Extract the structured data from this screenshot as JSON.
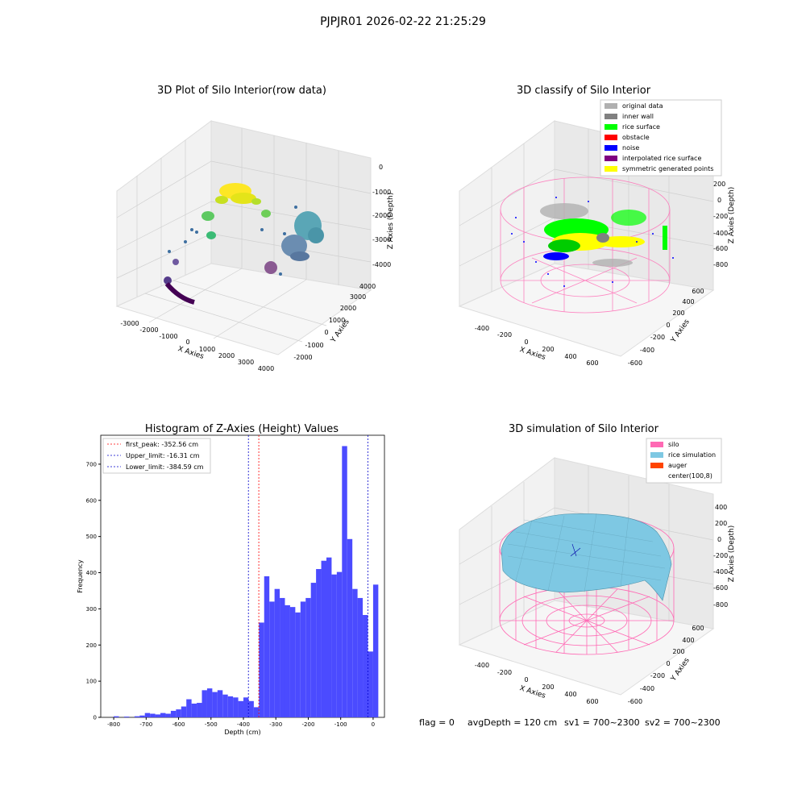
{
  "suptitle": "PJPJR01 2026-02-22 21:25:29",
  "status_line": {
    "flag": "flag = 0",
    "avg_depth": "avgDepth = 120 cm",
    "sv1": "sv1 = 700~2300",
    "sv2": "sv2 = 700~2300"
  },
  "colors": {
    "hist_bar": "#4b4bff",
    "first_peak": "#ff0000",
    "limit_line": "#0000cc",
    "silo": "#ff69b4",
    "rice_simulation": "#7ec8e3",
    "auger": "#ff4500",
    "rice_surface": "#00ff00",
    "noise": "#0000ff",
    "original_data": "#b0b0b0",
    "inner_wall": "#808080",
    "obstacle": "#ff0000",
    "interpolated_rice_surface": "#800080",
    "symmetric_generated_points": "#ffff00"
  },
  "chart_data": [
    {
      "type": "scatter",
      "projection": "3d",
      "title": "3D Plot of Silo Interior(row data)",
      "xlabel": "X Axies",
      "ylabel": "Y Axies",
      "zlabel": "Z Axies (Depth)",
      "x_ticks": [
        "-3000",
        "-2000",
        "-1000",
        "0",
        "1000",
        "2000",
        "3000",
        "4000"
      ],
      "y_ticks": [
        "-2000",
        "-1000",
        "0",
        "1000",
        "2000",
        "3000",
        "4000"
      ],
      "z_ticks": [
        "0",
        "-1000",
        "-2000",
        "-3000",
        "-4000"
      ],
      "colormap": "viridis",
      "grid": true
    },
    {
      "type": "scatter",
      "projection": "3d",
      "title": "3D classify of Silo Interior",
      "xlabel": "X Axies",
      "ylabel": "Y Axies",
      "zlabel": "Z Axies (Depth)",
      "x_ticks": [
        "-400",
        "-200",
        "0",
        "200",
        "400",
        "600"
      ],
      "y_ticks": [
        "-600",
        "-400",
        "-200",
        "0",
        "200",
        "400",
        "600"
      ],
      "z_ticks": [
        "200",
        "0",
        "-200",
        "-400",
        "-600",
        "-800"
      ],
      "legend": {
        "placement": "top-right",
        "entries": [
          {
            "label": "original data",
            "color": "#b0b0b0"
          },
          {
            "label": "inner wall",
            "color": "#808080"
          },
          {
            "label": "rice surface",
            "color": "#00ff00"
          },
          {
            "label": "obstacle",
            "color": "#ff0000"
          },
          {
            "label": "noise",
            "color": "#0000ff"
          },
          {
            "label": "interpolated rice surface",
            "color": "#800080"
          },
          {
            "label": "symmetric generated points",
            "color": "#ffff00"
          }
        ]
      },
      "grid": true
    },
    {
      "type": "bar",
      "title": "Histogram of Z-Axies (Height) Values",
      "xlabel": "Depth (cm)",
      "ylabel": "Frequency",
      "xlim": [
        -840,
        35
      ],
      "ylim": [
        0,
        780
      ],
      "x_ticks": [
        -800,
        -700,
        -600,
        -500,
        -400,
        -300,
        -200,
        -100,
        0
      ],
      "y_ticks": [
        0,
        100,
        200,
        300,
        400,
        500,
        600,
        700
      ],
      "bin_width": 16,
      "bin_start": -800,
      "values": [
        3,
        0,
        2,
        0,
        3,
        5,
        12,
        10,
        8,
        12,
        10,
        18,
        22,
        30,
        50,
        38,
        40,
        75,
        80,
        70,
        75,
        63,
        58,
        55,
        45,
        55,
        45,
        28,
        262,
        390,
        320,
        355,
        330,
        310,
        305,
        290,
        320,
        330,
        372,
        410,
        433,
        442,
        395,
        402,
        750,
        493,
        355,
        330,
        283,
        182,
        367
      ],
      "vlines": [
        {
          "label": "first_peak: -352.56 cm",
          "x": -352.56,
          "color": "#ff0000"
        },
        {
          "label": "Upper_limit: -16.31 cm",
          "x": -16.31,
          "color": "#0000cc"
        },
        {
          "label": "Lower_limit: -384.59 cm",
          "x": -384.59,
          "color": "#0000cc"
        }
      ],
      "legend": {
        "placement": "top-left"
      }
    },
    {
      "type": "surface",
      "projection": "3d",
      "title": "3D simulation of Silo Interior",
      "xlabel": "X Axies",
      "ylabel": "Y Axies",
      "zlabel": "Z Axies (Depth)",
      "x_ticks": [
        "-400",
        "-200",
        "0",
        "200",
        "400",
        "600"
      ],
      "y_ticks": [
        "-600",
        "-400",
        "-200",
        "0",
        "200",
        "400",
        "600"
      ],
      "z_ticks": [
        "400",
        "200",
        "0",
        "-200",
        "-400",
        "-600",
        "-800"
      ],
      "legend": {
        "placement": "top-right",
        "entries": [
          {
            "label": "silo",
            "color": "#ff69b4"
          },
          {
            "label": "rice simulation",
            "color": "#7ec8e3"
          },
          {
            "label": "auger",
            "color": "#ff4500"
          },
          {
            "label": "center(100,8)",
            "color": ""
          }
        ]
      },
      "grid": true
    }
  ]
}
